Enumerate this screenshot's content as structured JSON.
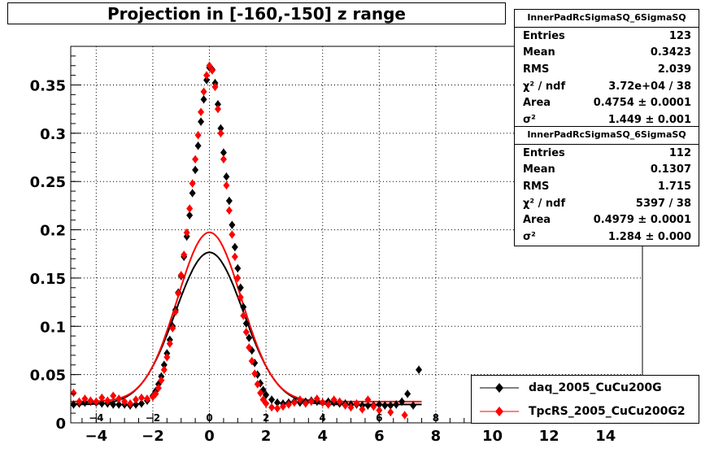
{
  "title": "Projection in [-160,-150] z range",
  "stats": [
    {
      "name": "InnerPadRcSigmaSQ_6SigmaSQ",
      "rows": [
        {
          "label": "Entries",
          "value": "123"
        },
        {
          "label": "Mean",
          "value": "0.3423"
        },
        {
          "label": "RMS",
          "value": "2.039"
        },
        {
          "label": "χ² / ndf",
          "value": "3.72e+04 / 38"
        },
        {
          "label": "Area",
          "value": "0.4754 ± 0.0001"
        },
        {
          "label": "σ²",
          "value": "1.449 ± 0.001"
        }
      ]
    },
    {
      "name": "InnerPadRcSigmaSQ_6SigmaSQ",
      "rows": [
        {
          "label": "Entries",
          "value": "112"
        },
        {
          "label": "Mean",
          "value": "0.1307"
        },
        {
          "label": "RMS",
          "value": "1.715"
        },
        {
          "label": "χ² / ndf",
          "value": "5397 / 38"
        },
        {
          "label": "Area",
          "value": "0.4979 ± 0.0001"
        },
        {
          "label": "σ²",
          "value": "1.284 ± 0.000"
        }
      ]
    }
  ],
  "legend": [
    {
      "name": "daq_2005_CuCu200G",
      "color": "#000000",
      "marker": "diamond"
    },
    {
      "name": "TpcRS_2005_CuCu200G2",
      "color": "#ff0000",
      "marker": "diamond"
    }
  ],
  "chart_data": {
    "type": "scatter",
    "title": "Projection in [-160,-150] z range",
    "xlim": [
      -4.9,
      15.3
    ],
    "ylim": [
      0,
      0.39
    ],
    "x_ticks": [
      -4,
      -2,
      0,
      2,
      4,
      6,
      8,
      10,
      12,
      14
    ],
    "x_tick_labels": [
      "−4",
      "−2",
      "0",
      "2",
      "4",
      "6",
      "8",
      "10",
      "12",
      "14"
    ],
    "x_ticks_inner": [
      -4,
      -2,
      0,
      2,
      4,
      6,
      8
    ],
    "y_ticks": [
      0,
      0.05,
      0.1,
      0.15,
      0.2,
      0.25,
      0.3,
      0.35
    ],
    "y_tick_labels": [
      "0",
      "0.05",
      "0.1",
      "0.15",
      "0.2",
      "0.25",
      "0.3",
      "0.35"
    ],
    "grid": true,
    "legend_position": "bottom-right",
    "series": [
      {
        "name": "daq_2005_CuCu200G",
        "color": "#000000",
        "marker": "diamond",
        "points": [
          [
            -4.8,
            0.019
          ],
          [
            -4.6,
            0.02
          ],
          [
            -4.4,
            0.021
          ],
          [
            -4.2,
            0.022
          ],
          [
            -4.0,
            0.021
          ],
          [
            -3.8,
            0.02
          ],
          [
            -3.6,
            0.02
          ],
          [
            -3.4,
            0.019
          ],
          [
            -3.2,
            0.019
          ],
          [
            -3.0,
            0.019
          ],
          [
            -2.8,
            0.018
          ],
          [
            -2.6,
            0.019
          ],
          [
            -2.4,
            0.02
          ],
          [
            -2.2,
            0.023
          ],
          [
            -2.0,
            0.028
          ],
          [
            -1.9,
            0.033
          ],
          [
            -1.8,
            0.04
          ],
          [
            -1.7,
            0.048
          ],
          [
            -1.6,
            0.06
          ],
          [
            -1.5,
            0.072
          ],
          [
            -1.4,
            0.086
          ],
          [
            -1.3,
            0.1
          ],
          [
            -1.2,
            0.117
          ],
          [
            -1.1,
            0.135
          ],
          [
            -1.0,
            0.152
          ],
          [
            -0.9,
            0.172
          ],
          [
            -0.8,
            0.193
          ],
          [
            -0.7,
            0.215
          ],
          [
            -0.6,
            0.238
          ],
          [
            -0.5,
            0.262
          ],
          [
            -0.4,
            0.287
          ],
          [
            -0.3,
            0.312
          ],
          [
            -0.2,
            0.335
          ],
          [
            -0.1,
            0.355
          ],
          [
            0.0,
            0.368
          ],
          [
            0.1,
            0.366
          ],
          [
            0.2,
            0.352
          ],
          [
            0.3,
            0.33
          ],
          [
            0.4,
            0.305
          ],
          [
            0.5,
            0.28
          ],
          [
            0.6,
            0.255
          ],
          [
            0.7,
            0.23
          ],
          [
            0.8,
            0.205
          ],
          [
            0.9,
            0.182
          ],
          [
            1.0,
            0.16
          ],
          [
            1.1,
            0.14
          ],
          [
            1.2,
            0.12
          ],
          [
            1.3,
            0.103
          ],
          [
            1.4,
            0.088
          ],
          [
            1.5,
            0.075
          ],
          [
            1.6,
            0.062
          ],
          [
            1.7,
            0.05
          ],
          [
            1.8,
            0.041
          ],
          [
            1.9,
            0.034
          ],
          [
            2.0,
            0.029
          ],
          [
            2.2,
            0.024
          ],
          [
            2.4,
            0.021
          ],
          [
            2.6,
            0.02
          ],
          [
            2.8,
            0.021
          ],
          [
            3.0,
            0.022
          ],
          [
            3.2,
            0.021
          ],
          [
            3.4,
            0.022
          ],
          [
            3.6,
            0.023
          ],
          [
            3.8,
            0.022
          ],
          [
            4.0,
            0.021
          ],
          [
            4.2,
            0.022
          ],
          [
            4.4,
            0.021
          ],
          [
            4.6,
            0.02
          ],
          [
            4.8,
            0.02
          ],
          [
            5.0,
            0.019
          ],
          [
            5.2,
            0.019
          ],
          [
            5.4,
            0.018
          ],
          [
            5.6,
            0.018
          ],
          [
            5.8,
            0.018
          ],
          [
            6.0,
            0.019
          ],
          [
            6.2,
            0.018
          ],
          [
            6.4,
            0.018
          ],
          [
            6.6,
            0.019
          ],
          [
            6.8,
            0.022
          ],
          [
            7.0,
            0.03
          ],
          [
            7.2,
            0.018
          ],
          [
            7.4,
            0.055
          ]
        ]
      },
      {
        "name": "TpcRS_2005_CuCu200G2",
        "color": "#ff0000",
        "marker": "diamond",
        "points": [
          [
            -4.8,
            0.031
          ],
          [
            -4.6,
            0.022
          ],
          [
            -4.4,
            0.025
          ],
          [
            -4.2,
            0.023
          ],
          [
            -4.0,
            0.022
          ],
          [
            -3.8,
            0.026
          ],
          [
            -3.6,
            0.023
          ],
          [
            -3.4,
            0.028
          ],
          [
            -3.2,
            0.025
          ],
          [
            -3.0,
            0.022
          ],
          [
            -2.8,
            0.02
          ],
          [
            -2.6,
            0.024
          ],
          [
            -2.4,
            0.026
          ],
          [
            -2.2,
            0.025
          ],
          [
            -2.0,
            0.027
          ],
          [
            -1.9,
            0.03
          ],
          [
            -1.8,
            0.036
          ],
          [
            -1.7,
            0.044
          ],
          [
            -1.6,
            0.055
          ],
          [
            -1.5,
            0.068
          ],
          [
            -1.4,
            0.082
          ],
          [
            -1.3,
            0.098
          ],
          [
            -1.2,
            0.115
          ],
          [
            -1.1,
            0.134
          ],
          [
            -1.0,
            0.153
          ],
          [
            -0.9,
            0.174
          ],
          [
            -0.8,
            0.197
          ],
          [
            -0.7,
            0.222
          ],
          [
            -0.6,
            0.248
          ],
          [
            -0.5,
            0.273
          ],
          [
            -0.4,
            0.298
          ],
          [
            -0.3,
            0.322
          ],
          [
            -0.2,
            0.343
          ],
          [
            -0.1,
            0.36
          ],
          [
            0.0,
            0.37
          ],
          [
            0.1,
            0.365
          ],
          [
            0.2,
            0.348
          ],
          [
            0.3,
            0.325
          ],
          [
            0.4,
            0.3
          ],
          [
            0.5,
            0.273
          ],
          [
            0.6,
            0.246
          ],
          [
            0.7,
            0.22
          ],
          [
            0.8,
            0.195
          ],
          [
            0.9,
            0.172
          ],
          [
            1.0,
            0.15
          ],
          [
            1.1,
            0.13
          ],
          [
            1.2,
            0.111
          ],
          [
            1.3,
            0.094
          ],
          [
            1.4,
            0.078
          ],
          [
            1.5,
            0.064
          ],
          [
            1.6,
            0.051
          ],
          [
            1.7,
            0.04
          ],
          [
            1.8,
            0.031
          ],
          [
            1.9,
            0.024
          ],
          [
            2.0,
            0.02
          ],
          [
            2.2,
            0.016
          ],
          [
            2.4,
            0.015
          ],
          [
            2.6,
            0.017
          ],
          [
            2.8,
            0.019
          ],
          [
            3.0,
            0.021
          ],
          [
            3.2,
            0.024
          ],
          [
            3.4,
            0.02
          ],
          [
            3.6,
            0.022
          ],
          [
            3.8,
            0.025
          ],
          [
            4.0,
            0.021
          ],
          [
            4.2,
            0.019
          ],
          [
            4.4,
            0.024
          ],
          [
            4.6,
            0.022
          ],
          [
            4.8,
            0.018
          ],
          [
            5.0,
            0.016
          ],
          [
            5.2,
            0.02
          ],
          [
            5.4,
            0.014
          ],
          [
            5.6,
            0.024
          ],
          [
            5.8,
            0.017
          ],
          [
            6.0,
            0.013
          ],
          [
            6.4,
            0.011
          ],
          [
            6.9,
            0.008
          ]
        ]
      }
    ],
    "fits": [
      {
        "series": "daq_2005_CuCu200G",
        "color": "#000000",
        "area": 0.4754,
        "sigma2": 1.449,
        "mean": 0.0,
        "baseline": 0.019
      },
      {
        "series": "TpcRS_2005_CuCu200G2",
        "color": "#ff0000",
        "area": 0.4979,
        "sigma2": 1.284,
        "mean": 0.0,
        "baseline": 0.022
      }
    ]
  }
}
